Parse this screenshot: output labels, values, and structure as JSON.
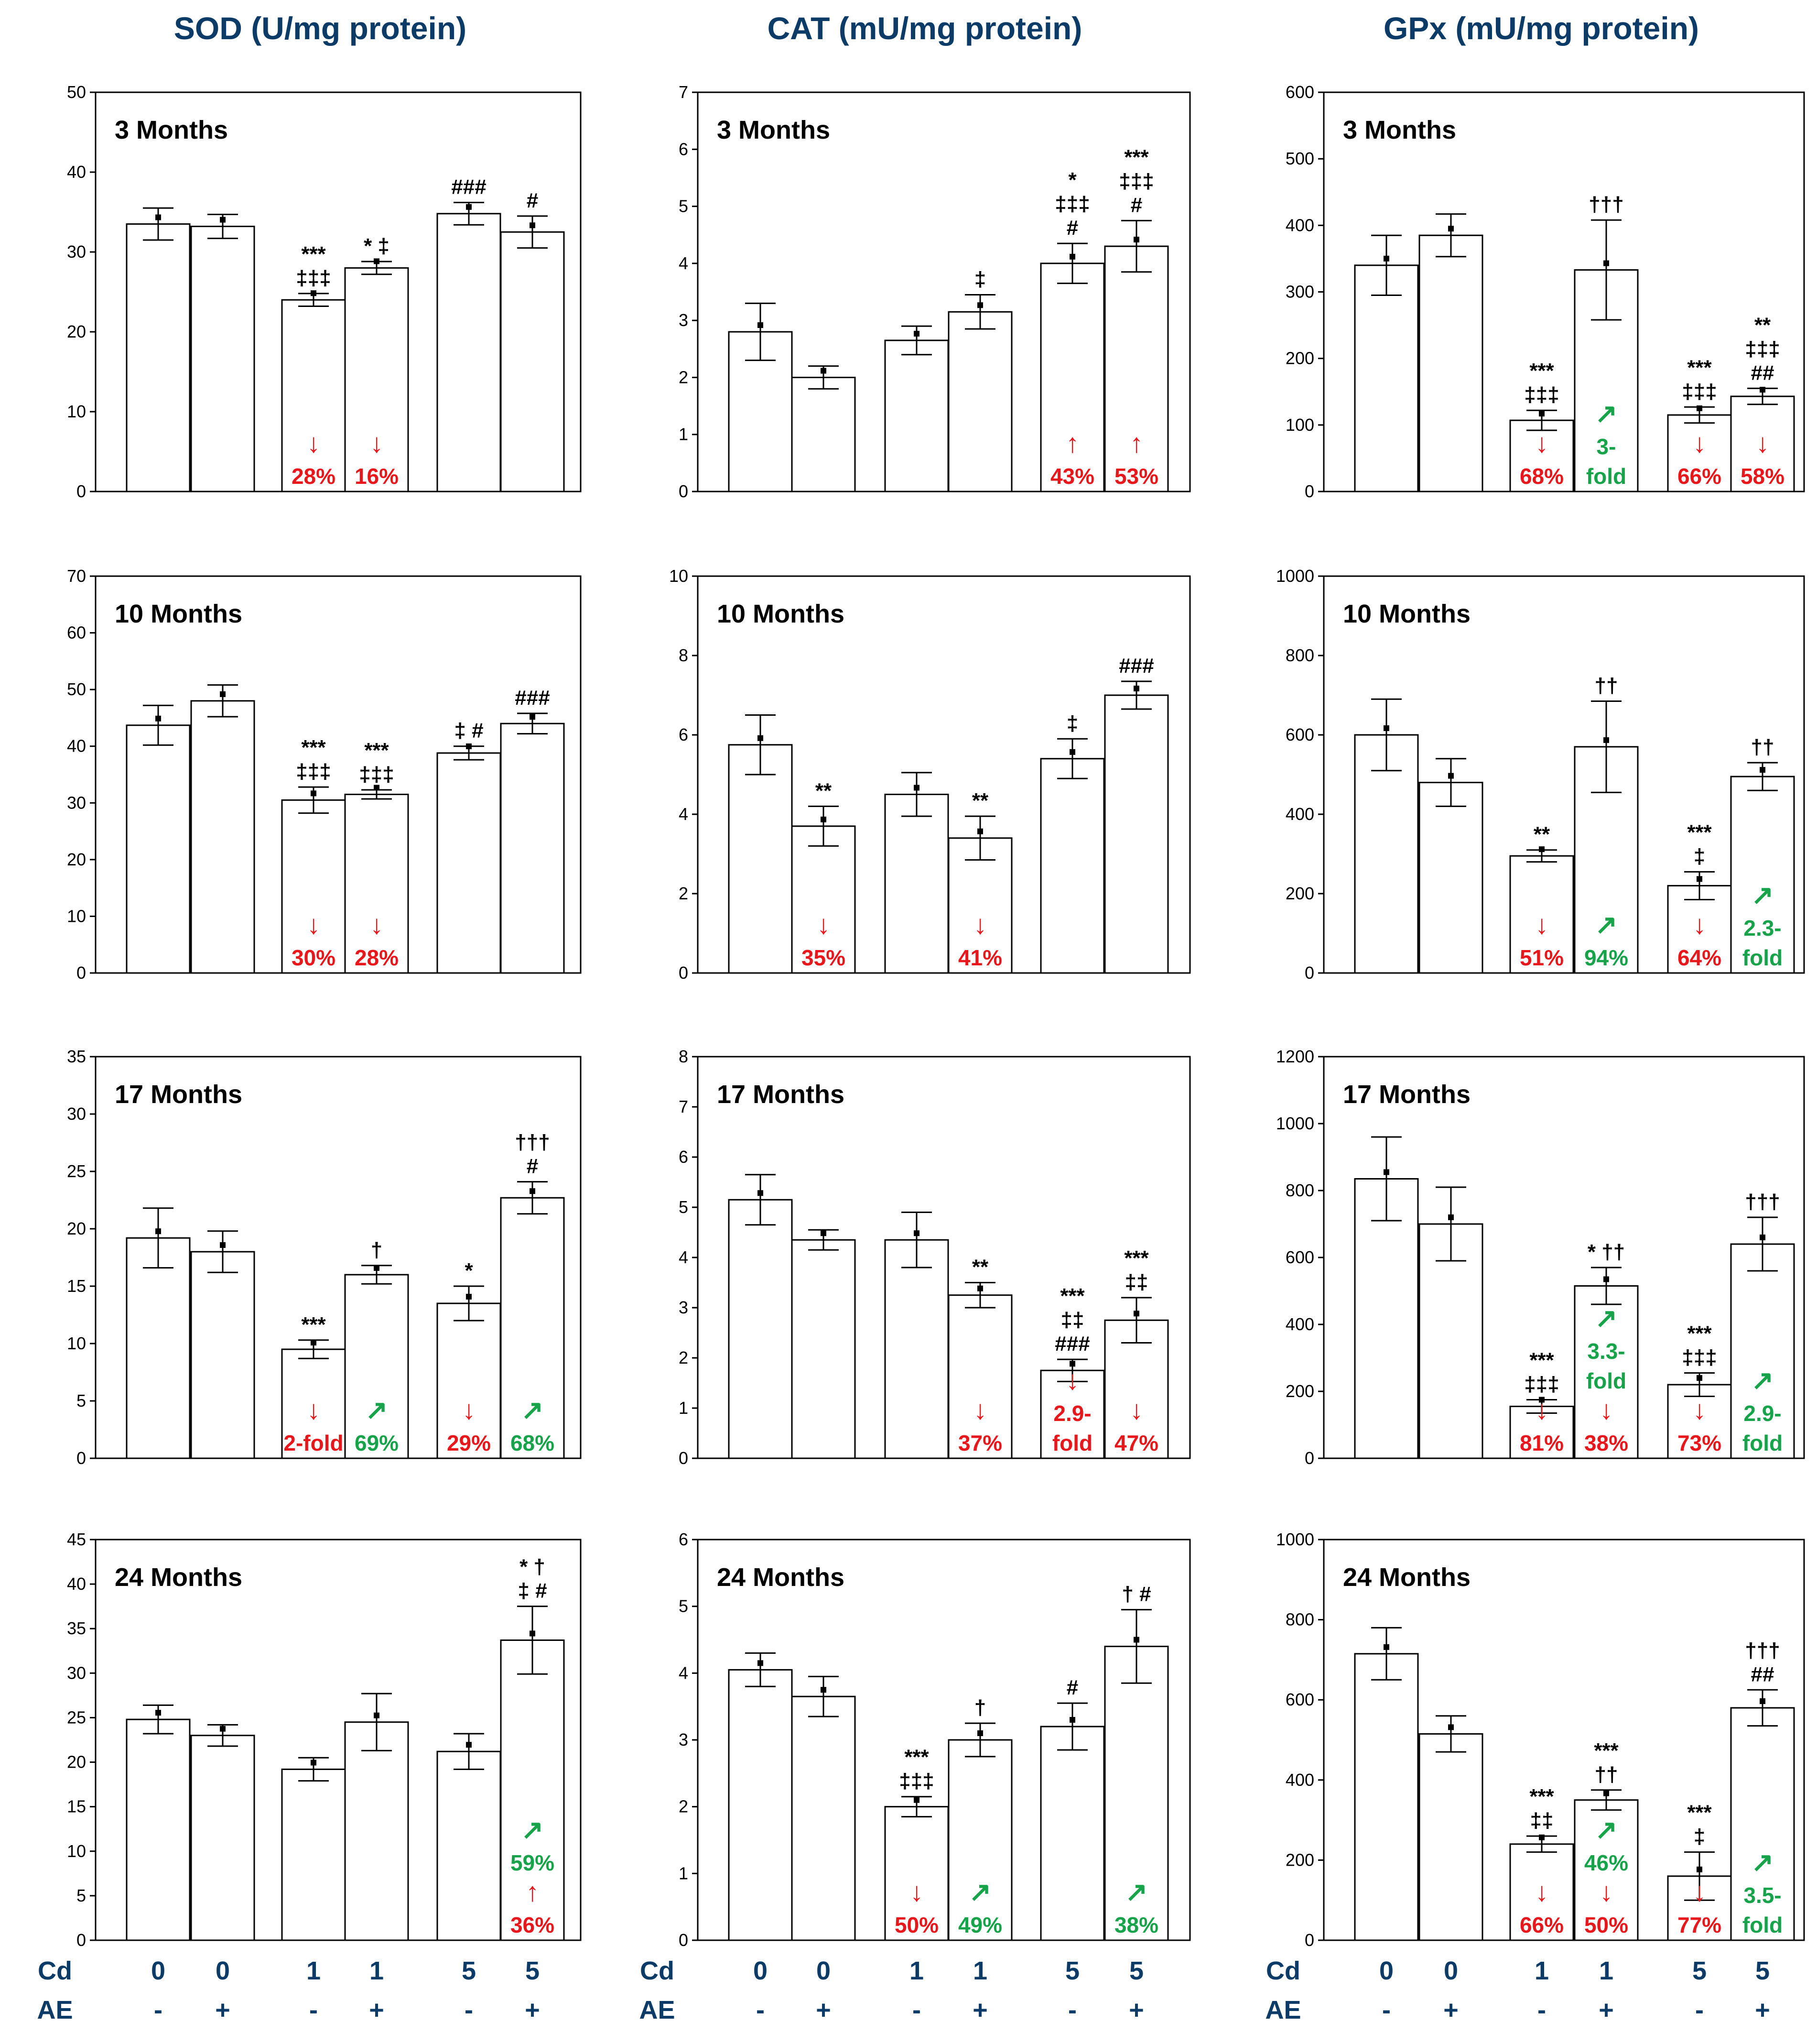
{
  "figure": {
    "columns": [
      {
        "title": "SOD (U/mg protein)"
      },
      {
        "title": "CAT (mU/mg protein)"
      },
      {
        "title": "GPx (mU/mg protein)"
      }
    ],
    "x_axis": {
      "cd_label": "Cd",
      "ae_label": "AE",
      "cd_values": [
        "0",
        "0",
        "1",
        "1",
        "5",
        "5"
      ],
      "ae_values": [
        "-",
        "+",
        "-",
        "+",
        "-",
        "+"
      ]
    },
    "colors": {
      "title": "#0b3b66",
      "decrease": "#e8171b",
      "increase": "#16a34a",
      "bar_fill": "#ffffff",
      "axis": "#000000"
    }
  },
  "chart_data": [
    {
      "type": "bar",
      "row": 0,
      "col": 0,
      "panel_title": "3 Months",
      "ylim": [
        0,
        50
      ],
      "yticks": [
        0,
        10,
        20,
        30,
        40,
        50
      ],
      "categories": [
        "Cd0 AE-",
        "Cd0 AE+",
        "Cd1 AE-",
        "Cd1 AE+",
        "Cd5 AE-",
        "Cd5 AE+"
      ],
      "values": [
        33.5,
        33.2,
        24.0,
        28.0,
        34.8,
        32.5
      ],
      "errors": [
        2.0,
        1.5,
        0.8,
        0.8,
        1.4,
        2.0
      ],
      "sig": [
        [],
        [],
        [
          "***",
          "‡‡‡"
        ],
        [
          "* ‡"
        ],
        [
          "###"
        ],
        [
          "#"
        ]
      ],
      "changes": [
        null,
        null,
        {
          "dir": "down",
          "lines": [
            "28%"
          ]
        },
        {
          "dir": "down",
          "lines": [
            "16%"
          ]
        },
        null,
        null
      ]
    },
    {
      "type": "bar",
      "row": 0,
      "col": 1,
      "panel_title": "3 Months",
      "ylim": [
        0,
        7
      ],
      "yticks": [
        0,
        1,
        2,
        3,
        4,
        5,
        6,
        7
      ],
      "categories": [
        "Cd0 AE-",
        "Cd0 AE+",
        "Cd1 AE-",
        "Cd1 AE+",
        "Cd5 AE-",
        "Cd5 AE+"
      ],
      "values": [
        2.8,
        2.0,
        2.65,
        3.15,
        4.0,
        4.3
      ],
      "errors": [
        0.5,
        0.2,
        0.25,
        0.3,
        0.35,
        0.45
      ],
      "sig": [
        [],
        [],
        [],
        [
          "‡"
        ],
        [
          "*",
          "‡‡‡",
          "#"
        ],
        [
          "***",
          "‡‡‡",
          "#"
        ]
      ],
      "changes": [
        null,
        null,
        null,
        null,
        {
          "dir": "up",
          "lines": [
            "43%"
          ]
        },
        {
          "dir": "up",
          "lines": [
            "53%"
          ]
        }
      ]
    },
    {
      "type": "bar",
      "row": 0,
      "col": 2,
      "panel_title": "3 Months",
      "ylim": [
        0,
        600
      ],
      "yticks": [
        0,
        100,
        200,
        300,
        400,
        500,
        600
      ],
      "categories": [
        "Cd0 AE-",
        "Cd0 AE+",
        "Cd1 AE-",
        "Cd1 AE+",
        "Cd5 AE-",
        "Cd5 AE+"
      ],
      "values": [
        340,
        385,
        107,
        333,
        115,
        143
      ],
      "errors": [
        45,
        32,
        15,
        75,
        12,
        12
      ],
      "sig": [
        [],
        [],
        [
          "***",
          "‡‡‡"
        ],
        [
          "†††"
        ],
        [
          "***",
          "‡‡‡"
        ],
        [
          "**",
          "‡‡‡",
          "##"
        ]
      ],
      "changes": [
        null,
        null,
        {
          "dir": "down",
          "lines": [
            "68%"
          ]
        },
        {
          "dir": "up-right",
          "lines": [
            "3-",
            "fold"
          ]
        },
        {
          "dir": "down",
          "lines": [
            "66%"
          ]
        },
        {
          "dir": "down",
          "lines": [
            "58%"
          ]
        }
      ]
    },
    {
      "type": "bar",
      "row": 1,
      "col": 0,
      "panel_title": "10 Months",
      "ylim": [
        0,
        70
      ],
      "yticks": [
        0,
        10,
        20,
        30,
        40,
        50,
        60,
        70
      ],
      "categories": [
        "Cd0 AE-",
        "Cd0 AE+",
        "Cd1 AE-",
        "Cd1 AE+",
        "Cd5 AE-",
        "Cd5 AE+"
      ],
      "values": [
        43.7,
        48.0,
        30.5,
        31.5,
        38.8,
        44.0
      ],
      "errors": [
        3.5,
        2.8,
        2.3,
        0.8,
        1.2,
        1.8
      ],
      "sig": [
        [],
        [],
        [
          "***",
          "‡‡‡"
        ],
        [
          "***",
          "‡‡‡"
        ],
        [
          "‡ #"
        ],
        [
          "###"
        ]
      ],
      "changes": [
        null,
        null,
        {
          "dir": "down",
          "lines": [
            "30%"
          ]
        },
        {
          "dir": "down",
          "lines": [
            "28%"
          ]
        },
        null,
        null
      ]
    },
    {
      "type": "bar",
      "row": 1,
      "col": 1,
      "panel_title": "10 Months",
      "ylim": [
        0,
        10
      ],
      "yticks": [
        0,
        2,
        4,
        6,
        8,
        10
      ],
      "categories": [
        "Cd0 AE-",
        "Cd0 AE+",
        "Cd1 AE-",
        "Cd1 AE+",
        "Cd5 AE-",
        "Cd5 AE+"
      ],
      "values": [
        5.75,
        3.7,
        4.5,
        3.4,
        5.4,
        7.0
      ],
      "errors": [
        0.75,
        0.5,
        0.55,
        0.55,
        0.5,
        0.35
      ],
      "sig": [
        [],
        [
          "**"
        ],
        [],
        [
          "**"
        ],
        [
          "‡"
        ],
        [
          "###"
        ]
      ],
      "changes": [
        null,
        {
          "dir": "down",
          "lines": [
            "35%"
          ]
        },
        null,
        {
          "dir": "down",
          "lines": [
            "41%"
          ]
        },
        null,
        null
      ]
    },
    {
      "type": "bar",
      "row": 1,
      "col": 2,
      "panel_title": "10 Months",
      "ylim": [
        0,
        1000
      ],
      "yticks": [
        0,
        200,
        400,
        600,
        800,
        1000
      ],
      "categories": [
        "Cd0 AE-",
        "Cd0 AE+",
        "Cd1 AE-",
        "Cd1 AE+",
        "Cd5 AE-",
        "Cd5 AE+"
      ],
      "values": [
        600,
        480,
        295,
        570,
        220,
        495
      ],
      "errors": [
        90,
        60,
        15,
        115,
        35,
        35
      ],
      "sig": [
        [],
        [],
        [
          "**"
        ],
        [
          "††"
        ],
        [
          "***",
          "‡"
        ],
        [
          "††"
        ]
      ],
      "changes": [
        null,
        null,
        {
          "dir": "down",
          "lines": [
            "51%"
          ]
        },
        {
          "dir": "up-right",
          "lines": [
            "94%"
          ]
        },
        {
          "dir": "down",
          "lines": [
            "64%"
          ]
        },
        {
          "dir": "up-right",
          "lines": [
            "2.3-",
            "fold"
          ]
        }
      ]
    },
    {
      "type": "bar",
      "row": 2,
      "col": 0,
      "panel_title": "17 Months",
      "ylim": [
        0,
        35
      ],
      "yticks": [
        0,
        5,
        10,
        15,
        20,
        25,
        30,
        35
      ],
      "categories": [
        "Cd0 AE-",
        "Cd0 AE+",
        "Cd1 AE-",
        "Cd1 AE+",
        "Cd5 AE-",
        "Cd5 AE+"
      ],
      "values": [
        19.2,
        18.0,
        9.5,
        16.0,
        13.5,
        22.7
      ],
      "errors": [
        2.6,
        1.8,
        0.8,
        0.8,
        1.5,
        1.4
      ],
      "sig": [
        [],
        [],
        [
          "***"
        ],
        [
          "†"
        ],
        [
          "*"
        ],
        [
          "†††",
          "#"
        ]
      ],
      "changes": [
        null,
        null,
        {
          "dir": "down",
          "lines": [
            "2-fold"
          ]
        },
        {
          "dir": "up-right",
          "lines": [
            "69%"
          ]
        },
        {
          "dir": "down",
          "lines": [
            "29%"
          ]
        },
        {
          "dir": "up-right",
          "lines": [
            "68%"
          ]
        }
      ]
    },
    {
      "type": "bar",
      "row": 2,
      "col": 1,
      "panel_title": "17 Months",
      "ylim": [
        0,
        8
      ],
      "yticks": [
        0,
        1,
        2,
        3,
        4,
        5,
        6,
        7,
        8
      ],
      "categories": [
        "Cd0 AE-",
        "Cd0 AE+",
        "Cd1 AE-",
        "Cd1 AE+",
        "Cd5 AE-",
        "Cd5 AE+"
      ],
      "values": [
        5.15,
        4.35,
        4.35,
        3.25,
        1.75,
        2.75
      ],
      "errors": [
        0.5,
        0.2,
        0.55,
        0.25,
        0.22,
        0.45
      ],
      "sig": [
        [],
        [],
        [],
        [
          "**"
        ],
        [
          "***",
          "‡‡",
          "###"
        ],
        [
          "***",
          "‡‡"
        ]
      ],
      "changes": [
        null,
        null,
        null,
        {
          "dir": "down",
          "lines": [
            "37%"
          ]
        },
        {
          "dir": "down",
          "lines": [
            "2.9-",
            "fold"
          ]
        },
        {
          "dir": "down",
          "lines": [
            "47%"
          ]
        }
      ]
    },
    {
      "type": "bar",
      "row": 2,
      "col": 2,
      "panel_title": "17 Months",
      "ylim": [
        0,
        1200
      ],
      "yticks": [
        0,
        200,
        400,
        600,
        800,
        1000,
        1200
      ],
      "categories": [
        "Cd0 AE-",
        "Cd0 AE+",
        "Cd1 AE-",
        "Cd1 AE+",
        "Cd5 AE-",
        "Cd5 AE+"
      ],
      "values": [
        835,
        700,
        155,
        515,
        220,
        640
      ],
      "errors": [
        125,
        110,
        20,
        55,
        35,
        80
      ],
      "sig": [
        [],
        [],
        [
          "***",
          "‡‡‡"
        ],
        [
          "* ††"
        ],
        [
          "***",
          "‡‡‡"
        ],
        [
          "†††"
        ]
      ],
      "changes": [
        null,
        null,
        {
          "dir": "down",
          "lines": [
            "81%"
          ]
        },
        {
          "dir": "up-right",
          "lines": [
            "3.3-",
            "fold"
          ],
          "second": {
            "dir": "down",
            "lines": [
              "38%"
            ]
          }
        },
        {
          "dir": "down",
          "lines": [
            "73%"
          ]
        },
        {
          "dir": "up-right",
          "lines": [
            "2.9-",
            "fold"
          ]
        }
      ]
    },
    {
      "type": "bar",
      "row": 3,
      "col": 0,
      "panel_title": "24 Months",
      "ylim": [
        0,
        45
      ],
      "yticks": [
        0,
        5,
        10,
        15,
        20,
        25,
        30,
        35,
        40,
        45
      ],
      "categories": [
        "Cd0 AE-",
        "Cd0 AE+",
        "Cd1 AE-",
        "Cd1 AE+",
        "Cd5 AE-",
        "Cd5 AE+"
      ],
      "values": [
        24.8,
        23.0,
        19.2,
        24.5,
        21.2,
        33.7
      ],
      "errors": [
        1.6,
        1.2,
        1.3,
        3.2,
        2.0,
        3.8
      ],
      "sig": [
        [],
        [],
        [],
        [],
        [],
        [
          "* †",
          "‡ #"
        ]
      ],
      "changes": [
        null,
        null,
        null,
        null,
        null,
        {
          "dir": "up-right",
          "lines": [
            "59%"
          ],
          "second": {
            "dir": "up",
            "lines": [
              "36%"
            ]
          }
        }
      ]
    },
    {
      "type": "bar",
      "row": 3,
      "col": 1,
      "panel_title": "24 Months",
      "ylim": [
        0,
        6
      ],
      "yticks": [
        0,
        1,
        2,
        3,
        4,
        5,
        6
      ],
      "categories": [
        "Cd0 AE-",
        "Cd0 AE+",
        "Cd1 AE-",
        "Cd1 AE+",
        "Cd5 AE-",
        "Cd5 AE+"
      ],
      "values": [
        4.05,
        3.65,
        2.0,
        3.0,
        3.2,
        4.4
      ],
      "errors": [
        0.25,
        0.3,
        0.15,
        0.25,
        0.35,
        0.55
      ],
      "sig": [
        [],
        [],
        [
          "***",
          "‡‡‡"
        ],
        [
          "†"
        ],
        [
          "#"
        ],
        [
          "† #"
        ]
      ],
      "changes": [
        null,
        null,
        {
          "dir": "down",
          "lines": [
            "50%"
          ]
        },
        {
          "dir": "up-right",
          "lines": [
            "49%"
          ]
        },
        null,
        {
          "dir": "up-right",
          "lines": [
            "38%"
          ]
        }
      ]
    },
    {
      "type": "bar",
      "row": 3,
      "col": 2,
      "panel_title": "24 Months",
      "ylim": [
        0,
        1000
      ],
      "yticks": [
        0,
        200,
        400,
        600,
        800,
        1000
      ],
      "categories": [
        "Cd0 AE-",
        "Cd0 AE+",
        "Cd1 AE-",
        "Cd1 AE+",
        "Cd5 AE-",
        "Cd5 AE+"
      ],
      "values": [
        715,
        515,
        240,
        350,
        160,
        580
      ],
      "errors": [
        65,
        45,
        20,
        25,
        60,
        45
      ],
      "sig": [
        [],
        [],
        [
          "***",
          "‡‡"
        ],
        [
          "***",
          "††"
        ],
        [
          "***",
          "‡"
        ],
        [
          "†††",
          "##"
        ]
      ],
      "changes": [
        null,
        null,
        {
          "dir": "down",
          "lines": [
            "66%"
          ]
        },
        {
          "dir": "up-right",
          "lines": [
            "46%"
          ],
          "second": {
            "dir": "down",
            "lines": [
              "50%"
            ]
          }
        },
        {
          "dir": "down",
          "lines": [
            "77%"
          ]
        },
        {
          "dir": "up-right",
          "lines": [
            "3.5-",
            "fold"
          ]
        }
      ]
    }
  ]
}
